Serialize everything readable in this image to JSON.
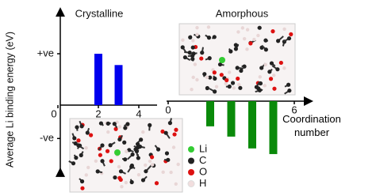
{
  "chart_data": [
    {
      "type": "bar",
      "title": "Crystalline",
      "ylabel": "Average Li binding energy (eV)",
      "x": [
        2,
        3
      ],
      "values": [
        1.0,
        0.78
      ],
      "color": "#0000ee",
      "xlim": [
        0,
        4.7
      ],
      "xticks": [
        0,
        2,
        4
      ],
      "ylim": [
        -1.26,
        1.86
      ],
      "yticks": [
        {
          "value": 1.0,
          "label": "+ve"
        },
        {
          "value": -0.65,
          "label": "-ve"
        }
      ]
    },
    {
      "type": "bar",
      "title": "Amorphous",
      "xlabel": "Coordination number",
      "x": [
        2,
        3,
        4,
        5
      ],
      "values": [
        -0.49,
        -0.69,
        -0.92,
        -1.03
      ],
      "color": "#0a8a0a",
      "xlim": [
        0,
        6.6
      ],
      "xticks": [
        0,
        2,
        4,
        6
      ],
      "ylim": [
        -1.26,
        1.86
      ]
    }
  ],
  "atom_legend": [
    {
      "label": "Li",
      "color": "#33cc33"
    },
    {
      "label": "C",
      "color": "#222222"
    },
    {
      "label": "O",
      "color": "#dd1111"
    },
    {
      "label": "H",
      "color": "#f2dede"
    }
  ]
}
